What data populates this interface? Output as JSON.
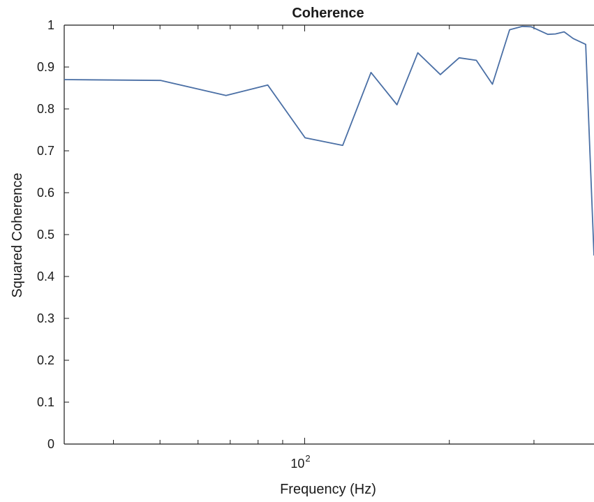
{
  "chart_data": {
    "type": "line",
    "title": "Coherence",
    "xlabel": "Frequency (Hz)",
    "ylabel": "Squared Coherence",
    "x_scale": "log",
    "xlim": [
      31.6,
      400
    ],
    "ylim": [
      0,
      1
    ],
    "y_ticks": [
      0,
      0.1,
      0.2,
      0.3,
      0.4,
      0.5,
      0.6,
      0.7,
      0.8,
      0.9,
      1
    ],
    "y_tick_labels": [
      "0",
      "0.1",
      "0.2",
      "0.3",
      "0.4",
      "0.5",
      "0.6",
      "0.7",
      "0.8",
      "0.9",
      "1"
    ],
    "x_ticks": [
      40,
      50,
      60,
      70,
      80,
      90,
      100,
      200,
      300
    ],
    "x_tick_labels": [
      {
        "value": 100,
        "base": "10",
        "exponent": "2"
      }
    ],
    "grid": false,
    "line_color": "#4a6fa5",
    "series": [
      {
        "x": [
          31.6,
          50.2,
          68.6,
          83.8,
          100.2,
          120.0,
          137.4,
          155.6,
          172.0,
          191.6,
          209.6,
          227.6,
          245.9,
          267.0,
          283.8,
          296.2,
          320.6,
          332.5,
          346.6,
          362.0,
          384.4,
          400
        ],
        "y": [
          0.87,
          0.868,
          0.832,
          0.857,
          0.731,
          0.713,
          0.887,
          0.81,
          0.934,
          0.882,
          0.922,
          0.916,
          0.859,
          0.989,
          0.997,
          0.996,
          0.978,
          0.979,
          0.984,
          0.968,
          0.954,
          0.45
        ]
      }
    ]
  }
}
